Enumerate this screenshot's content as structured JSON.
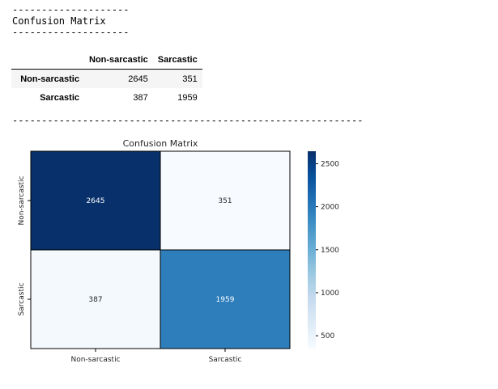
{
  "output": {
    "dash_line_short": "--------------------",
    "heading": "Confusion Matrix",
    "dash_line_long": "------------------------------------------------------------"
  },
  "table": {
    "columns": [
      "Non-sarcastic",
      "Sarcastic"
    ],
    "rows": [
      {
        "label": "Non-sarcastic",
        "values": [
          "2645",
          "351"
        ]
      },
      {
        "label": "Sarcastic",
        "values": [
          "387",
          "1959"
        ]
      }
    ]
  },
  "chart_data": {
    "type": "heatmap",
    "title": "Confusion Matrix",
    "x_categories": [
      "Non-sarcastic",
      "Sarcastic"
    ],
    "y_categories": [
      "Non-sarcastic",
      "Sarcastic"
    ],
    "values": [
      [
        2645,
        351
      ],
      [
        387,
        1959
      ]
    ],
    "colormap": "Blues",
    "color_range": [
      351,
      2645
    ],
    "colorbar_ticks": [
      500,
      1000,
      1500,
      2000,
      2500
    ],
    "colors": {
      "low": "#f7fbff",
      "mid": "#6baed6",
      "high": "#08306b"
    }
  }
}
